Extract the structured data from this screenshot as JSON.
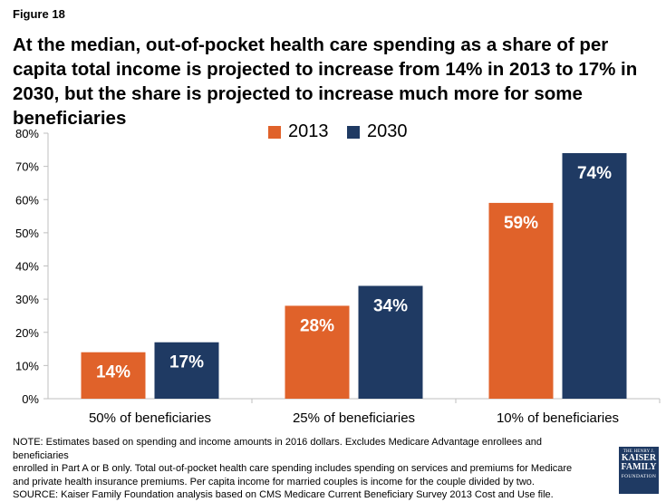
{
  "figure_label": "Figure 18",
  "title": "At the median, out-of-pocket health care spending as a share of per capita total income is projected to increase from 14% in 2013 to 17% in 2030, but the share is projected to increase much more for some beneficiaries",
  "note_lines": [
    "NOTE: Estimates based on spending and income amounts in 2016 dollars. Excludes Medicare Advantage enrollees and beneficiaries",
    "enrolled in Part A or B only. Total out-of-pocket health care spending includes spending on services and premiums for Medicare",
    "and private health insurance premiums. Per capita income for married couples is income for the couple divided by two.",
    "SOURCE: Kaiser Family Foundation analysis based on CMS Medicare Current Beneficiary Survey 2013 Cost and Use file."
  ],
  "logo": {
    "line1": "THE HENRY J.",
    "line2": "KAISER",
    "line3": "FAMILY",
    "line4": "FOUNDATION"
  },
  "colors": {
    "series_2013": "#e0622a",
    "series_2030": "#1f3a63",
    "axis": "#bfbfbf"
  },
  "chart_data": {
    "type": "bar",
    "categories": [
      "50% of beneficiaries",
      "25% of beneficiaries",
      "10% of beneficiaries"
    ],
    "series": [
      {
        "name": "2013",
        "values": [
          14,
          28,
          59
        ]
      },
      {
        "name": "2030",
        "values": [
          17,
          34,
          74
        ]
      }
    ],
    "data_labels": [
      [
        "14%",
        "28%",
        "59%"
      ],
      [
        "17%",
        "34%",
        "74%"
      ]
    ],
    "ylim": [
      0,
      80
    ],
    "yticks": [
      0,
      10,
      20,
      30,
      40,
      50,
      60,
      70,
      80
    ],
    "ytick_labels": [
      "0%",
      "10%",
      "20%",
      "30%",
      "40%",
      "50%",
      "60%",
      "70%",
      "80%"
    ],
    "grid": false,
    "legend_position": "top-center"
  }
}
